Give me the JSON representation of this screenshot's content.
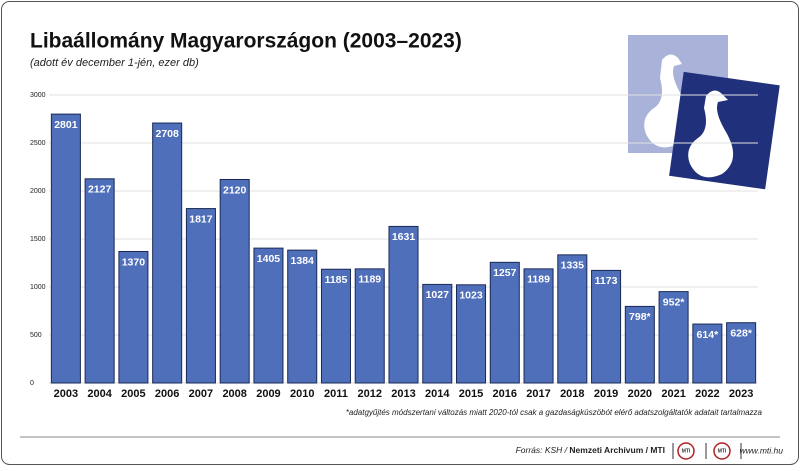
{
  "chart_data": {
    "type": "bar",
    "title": "Libaállomány Magyarországon (2003–2023)",
    "subtitle": "(adott év december 1-jén, ezer db)",
    "categories": [
      "2003",
      "2004",
      "2005",
      "2006",
      "2007",
      "2008",
      "2009",
      "2010",
      "2011",
      "2012",
      "2013",
      "2014",
      "2015",
      "2016",
      "2017",
      "2018",
      "2019",
      "2020",
      "2021",
      "2022",
      "2023"
    ],
    "values": [
      2801,
      2127,
      1370,
      2708,
      1817,
      2120,
      1405,
      1384,
      1185,
      1189,
      1631,
      1027,
      1023,
      1257,
      1189,
      1335,
      1173,
      798,
      952,
      614,
      628
    ],
    "value_labels": [
      "2801",
      "2127",
      "1370",
      "2708",
      "1817",
      "2120",
      "1405",
      "1384",
      "1185",
      "1189",
      "1631",
      "1027",
      "1023",
      "1257",
      "1189",
      "1335",
      "1173",
      "798*",
      "952*",
      "614*",
      "628*"
    ],
    "color": "#4f6fba",
    "ylim": [
      0,
      3000
    ],
    "yticks": [
      0,
      500,
      1000,
      1500,
      2000,
      2500,
      3000
    ],
    "grid": true,
    "footnote": "*adatgyűjtés módszertani változás miatt 2020-tól csak a gazdaságküszöbót elérő adatszolgáltatók adatait tartalmazza",
    "source_prefix": "Forrás: KSH /",
    "source_bold": "Nemzeti Archívum / MTI",
    "logo_text": "MTI",
    "website": "www.mti.hu"
  }
}
